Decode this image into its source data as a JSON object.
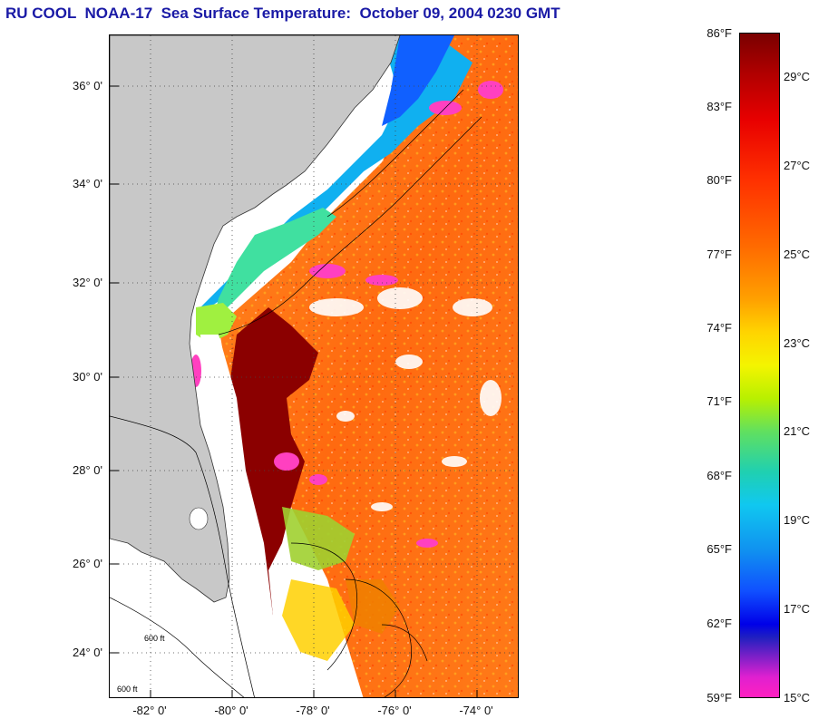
{
  "title": "RU COOL  NOAA-17  Sea Surface Temperature:  October 09, 2004 0230 GMT",
  "latitude_labels": [
    "36° 0'",
    "34° 0'",
    "32° 0'",
    "30° 0'",
    "28° 0'",
    "26° 0'",
    "24° 0'"
  ],
  "longitude_labels": [
    "-82° 0'",
    "-80° 0'",
    "-78° 0'",
    "-76° 0'",
    "-74° 0'"
  ],
  "colorbar": {
    "fahrenheit_labels": [
      "86°F",
      "83°F",
      "80°F",
      "77°F",
      "74°F",
      "71°F",
      "68°F",
      "65°F",
      "62°F",
      "59°F"
    ],
    "celsius_labels": [
      "29°C",
      "27°C",
      "25°C",
      "23°C",
      "21°C",
      "19°C",
      "17°C",
      "15°C"
    ],
    "range_f": [
      59,
      86
    ],
    "range_c": [
      15,
      30
    ]
  },
  "map_contour_labels": [
    "600 ft",
    "600 ft"
  ],
  "colors": {
    "title": "#1a1aa6",
    "land": "#c8c8c8",
    "hot": "#8b0000",
    "warm": "#ff7a10",
    "cloud_mask": "#ff40c0"
  }
}
